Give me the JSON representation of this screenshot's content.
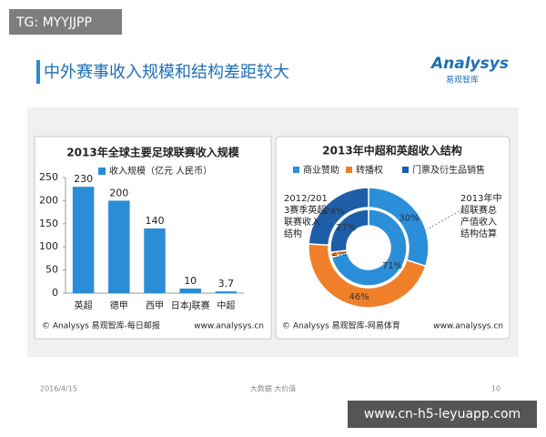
{
  "slide": {
    "badge": "TG: MYYJJPP",
    "title": "中外赛事收入规模和结构差距较大",
    "logo": "Analysys",
    "logo_sub": "易观智库",
    "date": "2016/4/15",
    "footer": "大数据 大价值",
    "page": "10",
    "site": "www.cn-h5-leyuapp.com"
  },
  "chart_data": [
    {
      "type": "bar",
      "title": "2013年全球主要足球联赛收入规模",
      "categories": [
        "英超",
        "德甲",
        "西甲",
        "日本J联赛",
        "中超"
      ],
      "series": [
        {
          "name": "收入规模（亿元 人民币）",
          "color": "#2b8dd6",
          "values": [
            230,
            200,
            140,
            10,
            3.7
          ]
        }
      ],
      "ylim": [
        0,
        250
      ],
      "yticks": [
        0,
        50,
        100,
        150,
        200,
        250
      ],
      "source": "© Analysys 易观智库-每日邮报",
      "url": "www.analysys.cn"
    },
    {
      "type": "pie",
      "title": "2013年中超和英超收入结构",
      "categories": [
        "商业赞助",
        "转播权",
        "门票及衍生品销售"
      ],
      "colors": [
        "#2b8ed8",
        "#f07f2a",
        "#1f5ea8"
      ],
      "rings": [
        {
          "label_lines": [
            "2012/201",
            "3赛季英超",
            "联赛收入",
            "结构"
          ],
          "values": [
            30,
            46,
            24
          ],
          "value_labels": [
            "30%",
            "46%",
            "24%"
          ]
        },
        {
          "label_lines": [
            "2013年中",
            "超联赛总",
            "产值收入",
            "结构估算"
          ],
          "values": [
            71,
            2,
            27
          ],
          "value_labels": [
            "71%",
            "2%",
            "27%"
          ]
        }
      ],
      "source": "© Analysys 易观智库-网易体育",
      "url": "www.analysys.cn"
    }
  ]
}
